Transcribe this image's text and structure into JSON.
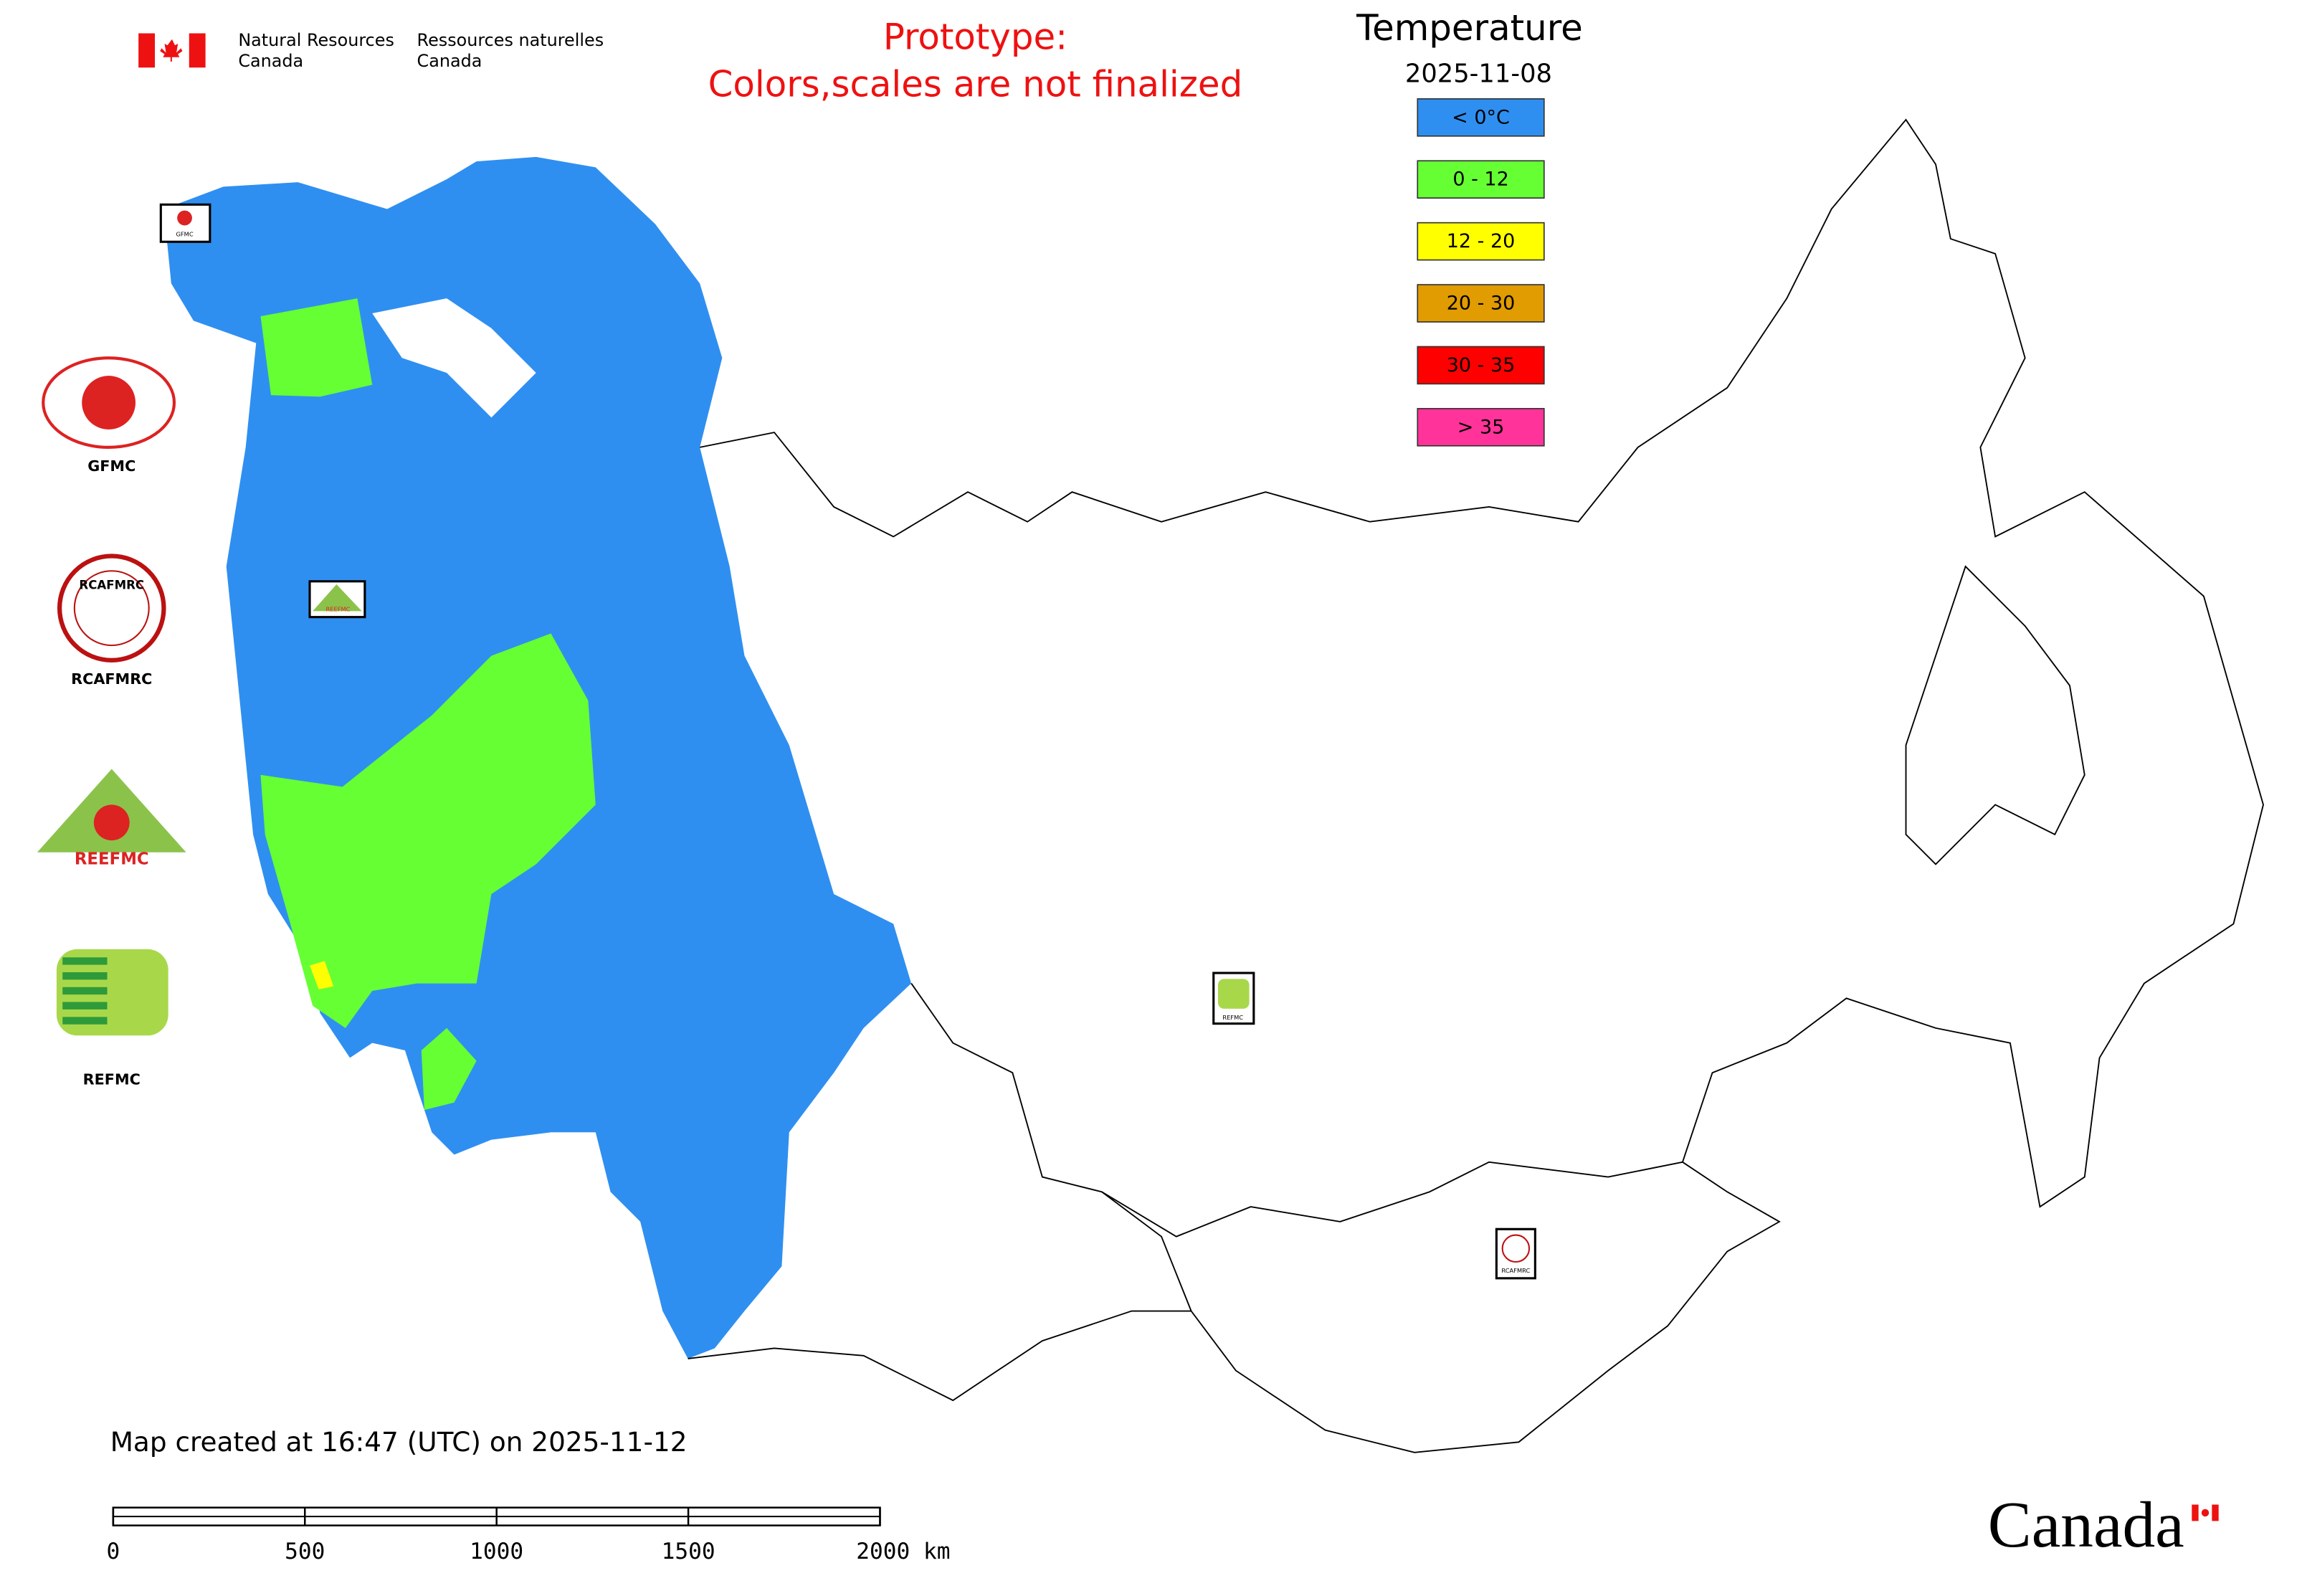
{
  "header": {
    "agency_en": [
      "Natural Resources",
      "Canada"
    ],
    "agency_fr": [
      "Ressources naturelles",
      "Canada"
    ],
    "notice": [
      "Prototype:",
      "Colors,scales are not finalized"
    ]
  },
  "legend": {
    "title": "Temperature",
    "date": "2025-11-08",
    "entries": [
      {
        "label": "< 0°C",
        "color": "#2f8ff0"
      },
      {
        "label": "0 - 12",
        "color": "#66ff33"
      },
      {
        "label": "12 - 20",
        "color": "#ffff00"
      },
      {
        "label": "20 - 30",
        "color": "#e09c00"
      },
      {
        "label": "30 - 35",
        "color": "#ff0000"
      },
      {
        "label": "> 35",
        "color": "#ff3399"
      }
    ]
  },
  "logos": [
    "GFMC",
    "RCAFMRC",
    "REEFMC",
    "REFMC"
  ],
  "footer": {
    "created": "Map created at 16:47 (UTC) on 2025-11-12",
    "wordmark": "Canada"
  },
  "scale_bar": {
    "ticks": [
      0,
      500,
      1000,
      1500,
      {
        "value": 2000,
        "label": "2000 km"
      }
    ]
  }
}
